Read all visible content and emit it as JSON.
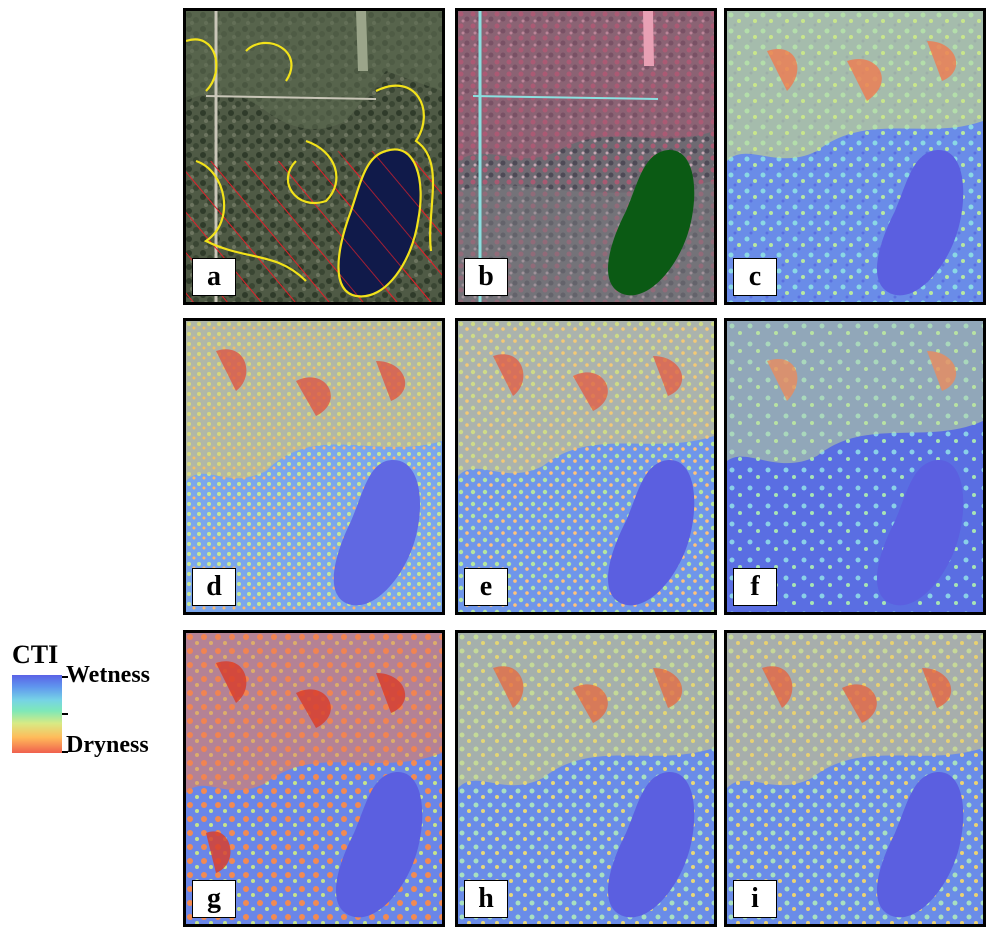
{
  "legend": {
    "title": "CTI",
    "high_label": "Wetness",
    "low_label": "Dryness",
    "colors": [
      "#5a62e6",
      "#76d3e6",
      "#d8ea84",
      "#f0604e"
    ]
  },
  "panels": [
    {
      "label": "a",
      "kind": "aerial-outline"
    },
    {
      "label": "b",
      "kind": "false-color"
    },
    {
      "label": "c",
      "kind": "cti"
    },
    {
      "label": "d",
      "kind": "cti"
    },
    {
      "label": "e",
      "kind": "cti"
    },
    {
      "label": "f",
      "kind": "cti"
    },
    {
      "label": "g",
      "kind": "cti"
    },
    {
      "label": "h",
      "kind": "cti"
    },
    {
      "label": "i",
      "kind": "cti"
    }
  ],
  "colors": {
    "lake_aerial": "#101a4a",
    "lake_false_color": "#0b5a14",
    "lake_cti": "#5b5fe0",
    "outline_yellow": "#f2e21a",
    "hatch_red": "#e0202a"
  }
}
